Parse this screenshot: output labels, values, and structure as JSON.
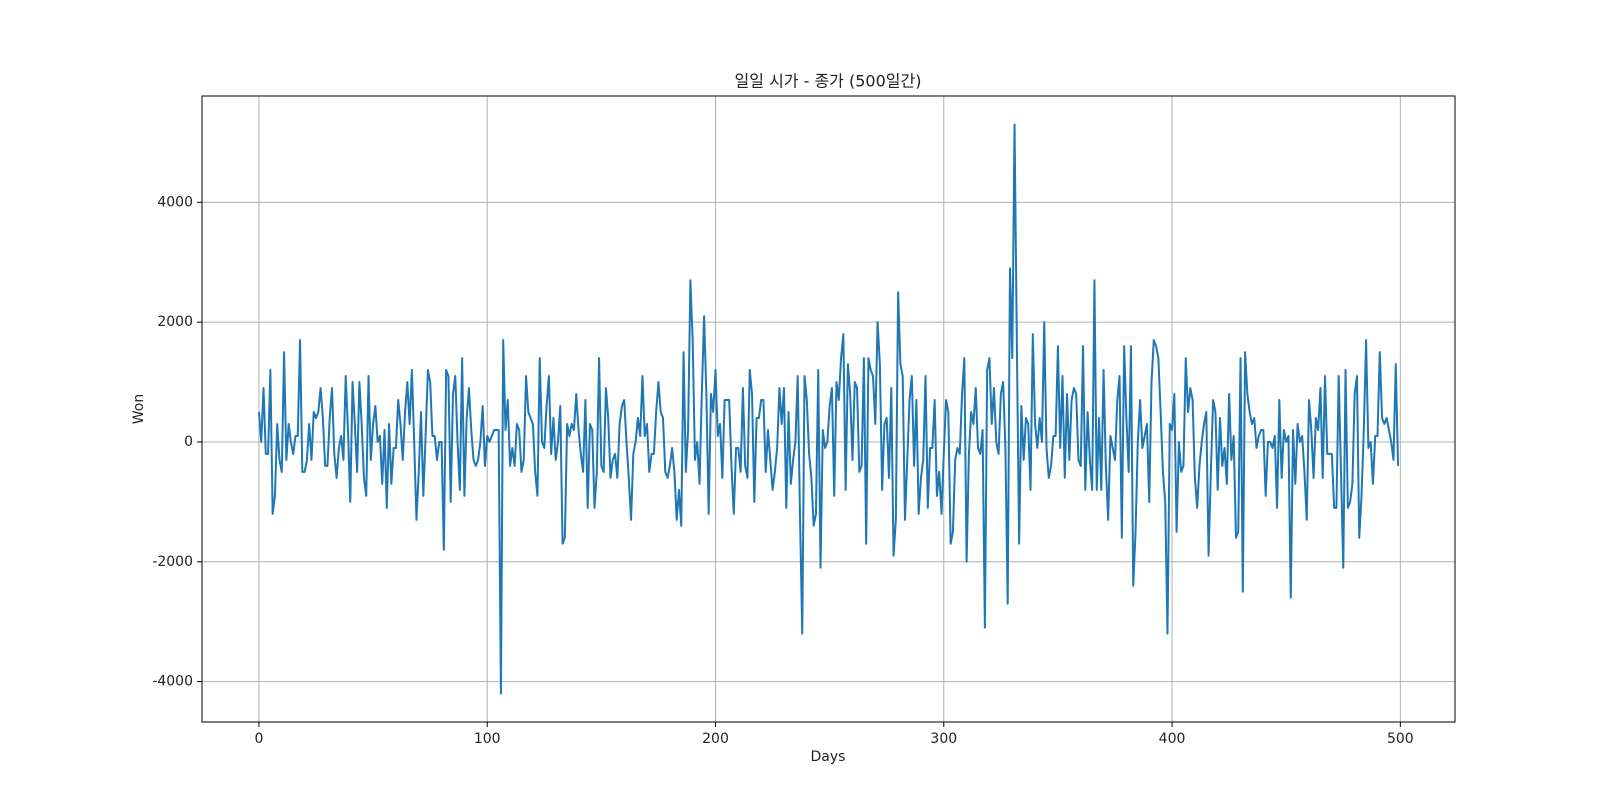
{
  "chart_data": {
    "type": "line",
    "title": "일일 시가 - 종가 (500일간)",
    "xlabel": "Days",
    "ylabel": "Won",
    "color": "#1f77b4",
    "grid": true,
    "xlim": [
      -24.95,
      523.95
    ],
    "ylim": [
      -4675,
      5775
    ],
    "xticks": [
      0,
      100,
      200,
      300,
      400,
      500
    ],
    "yticks": [
      -4000,
      -2000,
      0,
      2000,
      4000
    ],
    "x": [
      0,
      1,
      2,
      3,
      4,
      5,
      6,
      7,
      8,
      9,
      10,
      11,
      12,
      13,
      14,
      15,
      16,
      17,
      18,
      19,
      20,
      21,
      22,
      23,
      24,
      25,
      26,
      27,
      28,
      29,
      30,
      31,
      32,
      33,
      34,
      35,
      36,
      37,
      38,
      39,
      40,
      41,
      42,
      43,
      44,
      45,
      46,
      47,
      48,
      49,
      50,
      51,
      52,
      53,
      54,
      55,
      56,
      57,
      58,
      59,
      60,
      61,
      62,
      63,
      64,
      65,
      66,
      67,
      68,
      69,
      70,
      71,
      72,
      73,
      74,
      75,
      76,
      77,
      78,
      79,
      80,
      81,
      82,
      83,
      84,
      85,
      86,
      87,
      88,
      89,
      90,
      91,
      92,
      93,
      94,
      95,
      96,
      97,
      98,
      99,
      100,
      101,
      102,
      103,
      104,
      105,
      106,
      107,
      108,
      109,
      110,
      111,
      112,
      113,
      114,
      115,
      116,
      117,
      118,
      119,
      120,
      121,
      122,
      123,
      124,
      125,
      126,
      127,
      128,
      129,
      130,
      131,
      132,
      133,
      134,
      135,
      136,
      137,
      138,
      139,
      140,
      141,
      142,
      143,
      144,
      145,
      146,
      147,
      148,
      149,
      150,
      151,
      152,
      153,
      154,
      155,
      156,
      157,
      158,
      159,
      160,
      161,
      162,
      163,
      164,
      165,
      166,
      167,
      168,
      169,
      170,
      171,
      172,
      173,
      174,
      175,
      176,
      177,
      178,
      179,
      180,
      181,
      182,
      183,
      184,
      185,
      186,
      187,
      188,
      189,
      190,
      191,
      192,
      193,
      194,
      195,
      196,
      197,
      198,
      199,
      200,
      201,
      202,
      203,
      204,
      205,
      206,
      207,
      208,
      209,
      210,
      211,
      212,
      213,
      214,
      215,
      216,
      217,
      218,
      219,
      220,
      221,
      222,
      223,
      224,
      225,
      226,
      227,
      228,
      229,
      230,
      231,
      232,
      233,
      234,
      235,
      236,
      237,
      238,
      239,
      240,
      241,
      242,
      243,
      244,
      245,
      246,
      247,
      248,
      249,
      250,
      251,
      252,
      253,
      254,
      255,
      256,
      257,
      258,
      259,
      260,
      261,
      262,
      263,
      264,
      265,
      266,
      267,
      268,
      269,
      270,
      271,
      272,
      273,
      274,
      275,
      276,
      277,
      278,
      279,
      280,
      281,
      282,
      283,
      284,
      285,
      286,
      287,
      288,
      289,
      290,
      291,
      292,
      293,
      294,
      295,
      296,
      297,
      298,
      299,
      300,
      301,
      302,
      303,
      304,
      305,
      306,
      307,
      308,
      309,
      310,
      311,
      312,
      313,
      314,
      315,
      316,
      317,
      318,
      319,
      320,
      321,
      322,
      323,
      324,
      325,
      326,
      327,
      328,
      329,
      330,
      331,
      332,
      333,
      334,
      335,
      336,
      337,
      338,
      339,
      340,
      341,
      342,
      343,
      344,
      345,
      346,
      347,
      348,
      349,
      350,
      351,
      352,
      353,
      354,
      355,
      356,
      357,
      358,
      359,
      360,
      361,
      362,
      363,
      364,
      365,
      366,
      367,
      368,
      369,
      370,
      371,
      372,
      373,
      374,
      375,
      376,
      377,
      378,
      379,
      380,
      381,
      382,
      383,
      384,
      385,
      386,
      387,
      388,
      389,
      390,
      391,
      392,
      393,
      394,
      395,
      396,
      397,
      398,
      399,
      400,
      401,
      402,
      403,
      404,
      405,
      406,
      407,
      408,
      409,
      410,
      411,
      412,
      413,
      414,
      415,
      416,
      417,
      418,
      419,
      420,
      421,
      422,
      423,
      424,
      425,
      426,
      427,
      428,
      429,
      430,
      431,
      432,
      433,
      434,
      435,
      436,
      437,
      438,
      439,
      440,
      441,
      442,
      443,
      444,
      445,
      446,
      447,
      448,
      449,
      450,
      451,
      452,
      453,
      454,
      455,
      456,
      457,
      458,
      459,
      460,
      461,
      462,
      463,
      464,
      465,
      466,
      467,
      468,
      469,
      470,
      471,
      472,
      473,
      474,
      475,
      476,
      477,
      478,
      479,
      480,
      481,
      482,
      483,
      484,
      485,
      486,
      487,
      488,
      489,
      490,
      491,
      492,
      493,
      494,
      495,
      496,
      497,
      498,
      499
    ],
    "values": [
      500,
      0,
      900,
      -200,
      -200,
      1200,
      -1200,
      -900,
      300,
      -300,
      -500,
      1500,
      -300,
      300,
      0,
      -200,
      100,
      100,
      1700,
      -500,
      -500,
      -300,
      300,
      -300,
      500,
      400,
      500,
      900,
      400,
      -400,
      -400,
      400,
      900,
      -200,
      -600,
      -100,
      100,
      -300,
      1100,
      200,
      -1000,
      1000,
      300,
      -500,
      1000,
      300,
      -600,
      -900,
      1100,
      -300,
      300,
      600,
      0,
      100,
      -700,
      200,
      -1100,
      300,
      -700,
      -100,
      -100,
      700,
      300,
      -300,
      500,
      1000,
      300,
      1200,
      0,
      -1300,
      -500,
      500,
      -900,
      100,
      1200,
      1000,
      100,
      100,
      -300,
      0,
      0,
      -1800,
      1200,
      1100,
      -1000,
      800,
      1100,
      0,
      -800,
      1400,
      -900,
      400,
      900,
      200,
      -300,
      -400,
      -300,
      0,
      600,
      -400,
      100,
      0,
      100,
      200,
      200,
      200,
      -4200,
      1700,
      200,
      700,
      -400,
      -100,
      -400,
      300,
      200,
      -500,
      -300,
      1100,
      500,
      400,
      300,
      -500,
      -900,
      1400,
      0,
      -100,
      600,
      1100,
      -200,
      400,
      -300,
      0,
      600,
      -1700,
      -1600,
      300,
      100,
      300,
      200,
      800,
      200,
      -200,
      -500,
      700,
      -1100,
      300,
      200,
      -1100,
      -500,
      1400,
      -400,
      -500,
      900,
      400,
      -600,
      -300,
      -200,
      -600,
      300,
      600,
      700,
      0,
      -600,
      -1300,
      -200,
      0,
      400,
      100,
      1100,
      100,
      300,
      -500,
      -200,
      -200,
      500,
      1000,
      500,
      400,
      -500,
      -600,
      -400,
      -100,
      -500,
      -1300,
      -800,
      -1400,
      1500,
      -500,
      200,
      2700,
      1700,
      -300,
      0,
      -700,
      800,
      2100,
      800,
      -1200,
      800,
      500,
      1200,
      100,
      300,
      -600,
      700,
      700,
      700,
      -400,
      -1200,
      -100,
      -100,
      -500,
      900,
      -400,
      -600,
      1200,
      800,
      -1000,
      400,
      400,
      700,
      700,
      -500,
      200,
      -300,
      -800,
      -500,
      -100,
      900,
      300,
      900,
      -1100,
      500,
      -700,
      -300,
      0,
      1100,
      -1200,
      -3200,
      1100,
      700,
      -200,
      -600,
      -1400,
      -1200,
      1200,
      -2100,
      200,
      -100,
      0,
      600,
      900,
      -900,
      1000,
      700,
      1400,
      1800,
      -800,
      1300,
      800,
      -300,
      1000,
      900,
      -500,
      -400,
      1400,
      -1700,
      1400,
      1200,
      1100,
      300,
      2000,
      1300,
      -800,
      300,
      400,
      -600,
      900,
      -1900,
      -1300,
      2500,
      1300,
      1100,
      -1300,
      -300,
      700,
      1100,
      -400,
      700,
      -1200,
      -600,
      -300,
      1100,
      -1100,
      -100,
      -100,
      700,
      -900,
      -500,
      -1200,
      -200,
      700,
      500,
      -1700,
      -1500,
      -300,
      -100,
      -200,
      800,
      1400,
      -2000,
      -200,
      500,
      300,
      900,
      -100,
      -200,
      200,
      -3100,
      1200,
      1400,
      300,
      900,
      0,
      -200,
      800,
      1000,
      -100,
      -2700,
      2900,
      1400,
      5300,
      1700,
      -1700,
      600,
      -300,
      400,
      300,
      -800,
      1800,
      300,
      -100,
      400,
      0,
      2000,
      -100,
      -600,
      -400,
      100,
      100,
      1600,
      -100,
      1100,
      -600,
      800,
      -300,
      700,
      900,
      800,
      -300,
      -400,
      1600,
      -800,
      500,
      -300,
      -800,
      2700,
      -800,
      400,
      -800,
      1200,
      -400,
      -1300,
      100,
      -100,
      -300,
      700,
      1100,
      -1600,
      1600,
      400,
      -500,
      1600,
      -2400,
      -1500,
      0,
      700,
      -100,
      100,
      300,
      -1000,
      1000,
      1700,
      1600,
      1400,
      500,
      -500,
      -1000,
      -3200,
      300,
      200,
      800,
      -1500,
      0,
      -500,
      -400,
      1400,
      500,
      900,
      700,
      -600,
      -1100,
      -400,
      0,
      300,
      500,
      -1900,
      -500,
      700,
      500,
      -800,
      400,
      -400,
      -100,
      -700,
      800,
      -300,
      100,
      -1600,
      -1500,
      1400,
      -2500,
      1500,
      800,
      500,
      300,
      400,
      -100,
      100,
      200,
      200,
      -900,
      0,
      0,
      -100,
      100,
      -1100,
      700,
      -600,
      200,
      0,
      100,
      -2600,
      200,
      -700,
      300,
      0,
      100,
      -500,
      -1300,
      700,
      200,
      -600,
      400,
      200,
      900,
      -600,
      1100,
      -200,
      -200,
      -200,
      -1100,
      -1100,
      1100,
      -500,
      -2100,
      1200,
      -1100,
      -1000,
      -700,
      800,
      1100,
      -1600,
      -900,
      200,
      1700,
      -100,
      0,
      -700,
      100,
      100,
      1500,
      400,
      300,
      400,
      200,
      0,
      -300,
      1300,
      -400
    ]
  }
}
